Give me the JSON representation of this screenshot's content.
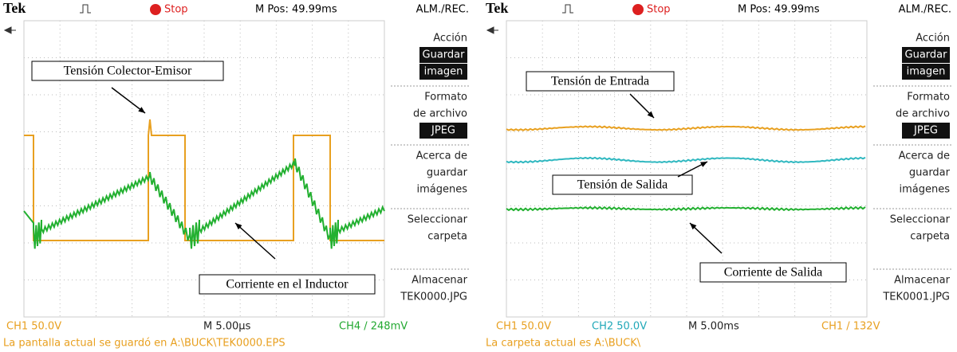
{
  "screens": [
    {
      "header": {
        "brand": "Tek",
        "status": "Stop",
        "position": "M Pos: 49.99ms",
        "menu_title": "ALM./REC."
      },
      "menu": [
        {
          "lines": [
            {
              "text": "Acción"
            },
            {
              "text": "Guardar",
              "highlight": true
            },
            {
              "text": "imagen",
              "highlight": true
            }
          ]
        },
        {
          "lines": [
            {
              "text": "Formato"
            },
            {
              "text": "de archivo"
            },
            {
              "text": "JPEG",
              "highlight": true
            }
          ]
        },
        {
          "lines": [
            {
              "text": "Acerca de"
            },
            {
              "text": "guardar"
            },
            {
              "text": "imágenes"
            }
          ]
        },
        {
          "lines": [
            {
              "text": "Seleccionar"
            },
            {
              "text": "carpeta"
            }
          ]
        },
        {
          "lines": [
            {
              "text": "Almacenar"
            },
            {
              "text": "TEK0000.JPG"
            }
          ]
        }
      ],
      "status_line": [
        {
          "text": "CH1  50.0V",
          "color": "#e8a020"
        },
        {
          "text": "M 5.00µs",
          "color": "#222222"
        },
        {
          "text": "CH4  /  248mV",
          "color": "#22a830"
        }
      ],
      "message": "La pantalla actual se guardó en A:\\BUCK\\TEK0000.EPS",
      "annotations": [
        "Tensión Colector-Emisor",
        "Corriente en el Inductor"
      ]
    },
    {
      "header": {
        "brand": "Tek",
        "status": "Stop",
        "position": "M Pos: 49.99ms",
        "menu_title": "ALM./REC."
      },
      "menu": [
        {
          "lines": [
            {
              "text": "Acción"
            },
            {
              "text": "Guardar",
              "highlight": true
            },
            {
              "text": "imagen",
              "highlight": true
            }
          ]
        },
        {
          "lines": [
            {
              "text": "Formato"
            },
            {
              "text": "de archivo"
            },
            {
              "text": "JPEG",
              "highlight": true
            }
          ]
        },
        {
          "lines": [
            {
              "text": "Acerca de"
            },
            {
              "text": "guardar"
            },
            {
              "text": "imágenes"
            }
          ]
        },
        {
          "lines": [
            {
              "text": "Seleccionar"
            },
            {
              "text": "carpeta"
            }
          ]
        },
        {
          "lines": [
            {
              "text": "Almacenar"
            },
            {
              "text": "TEK0001.JPG"
            }
          ]
        }
      ],
      "status_line": [
        {
          "text": "CH1  50.0V",
          "color": "#e8a020"
        },
        {
          "text": "CH2  50.0V",
          "color": "#20a8b8"
        },
        {
          "text": "M 5.00ms",
          "color": "#222222"
        },
        {
          "text": "CH1  /  132V",
          "color": "#e8a020"
        }
      ],
      "message": "La carpeta actual es A:\\BUCK\\",
      "annotations": [
        "Tensión de Entrada",
        "Tensión de Salida",
        "Corriente de Salida"
      ]
    }
  ]
}
